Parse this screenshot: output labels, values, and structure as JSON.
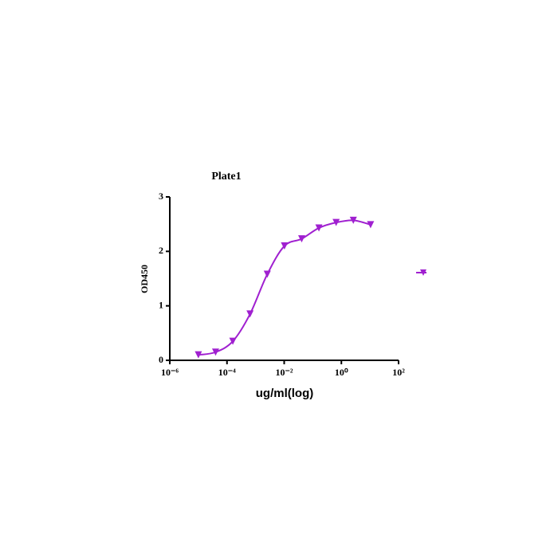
{
  "chart_data": {
    "type": "scatter",
    "title": "Plate1",
    "x_label": "ug/ml(log)",
    "y_label": "OD450",
    "x_scale": "log",
    "xlim": [
      1e-06,
      100
    ],
    "xticks": [
      {
        "value": 1e-06,
        "label": "10⁻⁶"
      },
      {
        "value": 0.0001,
        "label": "10⁻⁴"
      },
      {
        "value": 0.01,
        "label": "10⁻²"
      },
      {
        "value": 1,
        "label": "10⁰"
      },
      {
        "value": 100,
        "label": "10²"
      }
    ],
    "ylim": [
      0,
      3
    ],
    "yticks": [
      0,
      1,
      2,
      3
    ],
    "legend": "right",
    "series": [
      {
        "color": "#a020d0",
        "fit_line": true,
        "x": [
          1e-05,
          4e-05,
          0.00016,
          0.00064,
          0.00256,
          0.01024,
          0.04096,
          0.16384,
          0.65536,
          2.62144,
          10.48576
        ],
        "values": [
          0.1,
          0.15,
          0.35,
          0.85,
          1.58,
          2.1,
          2.23,
          2.43,
          2.53,
          2.57,
          2.49
        ]
      }
    ]
  }
}
